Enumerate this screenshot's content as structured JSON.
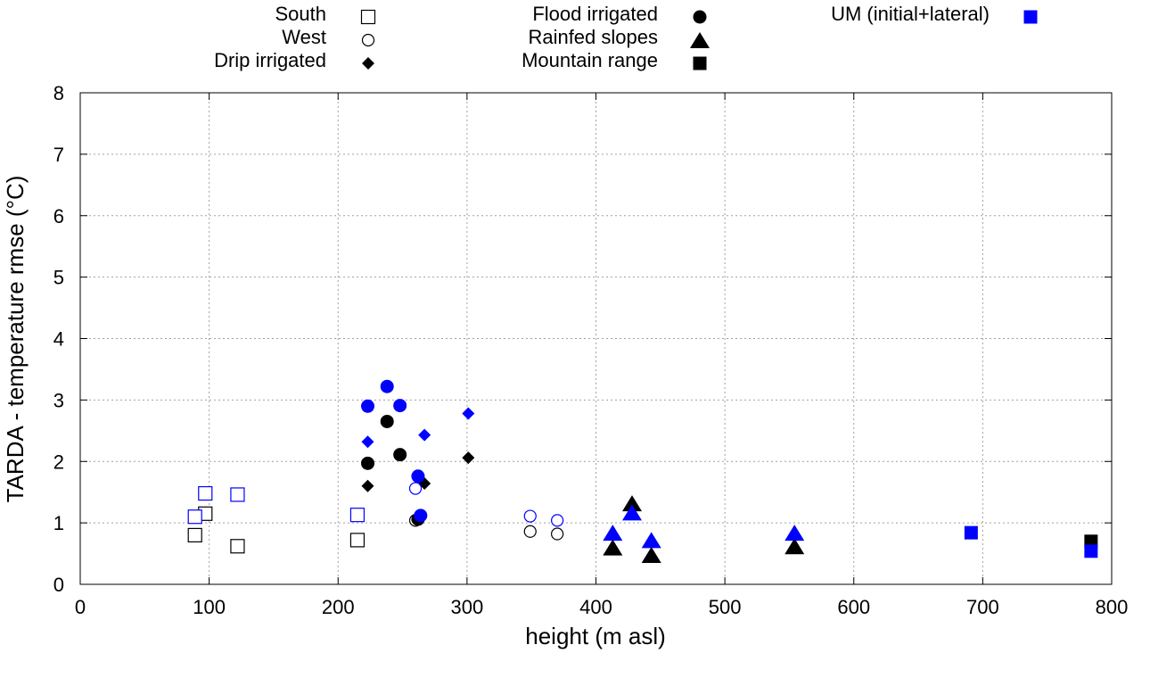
{
  "chart_data": {
    "type": "scatter",
    "title": "",
    "xlabel": "height (m asl)",
    "ylabel": "TARDA - temperature rmse (°C)",
    "xlim": [
      0,
      800
    ],
    "ylim": [
      0,
      8
    ],
    "xticks": [
      0,
      100,
      200,
      300,
      400,
      500,
      600,
      700,
      800
    ],
    "yticks": [
      0,
      1,
      2,
      3,
      4,
      5,
      6,
      7,
      8
    ],
    "grid": true,
    "legend_position": "top",
    "colors": {
      "black": "#000000",
      "blue": "#0000ff"
    },
    "legend": [
      {
        "label": "South",
        "marker": "square-open",
        "color": "#000000",
        "column": 0
      },
      {
        "label": "West",
        "marker": "circle-open",
        "color": "#000000",
        "column": 0
      },
      {
        "label": "Drip irrigated",
        "marker": "diamond",
        "color": "#000000",
        "column": 0
      },
      {
        "label": "Flood irrigated",
        "marker": "circle",
        "color": "#000000",
        "column": 1
      },
      {
        "label": "Rainfed slopes",
        "marker": "triangle",
        "color": "#000000",
        "column": 1
      },
      {
        "label": "Mountain range",
        "marker": "square",
        "color": "#000000",
        "column": 1
      },
      {
        "label": "UM (initial+lateral)",
        "marker": "square",
        "color": "#0000ff",
        "column": 2
      }
    ],
    "series": [
      {
        "name": "South",
        "marker": "square-open",
        "color": "#000000",
        "points": [
          [
            89,
            0.8
          ],
          [
            97,
            1.15
          ],
          [
            122,
            0.62
          ],
          [
            215,
            0.72
          ]
        ]
      },
      {
        "name": "West",
        "marker": "circle-open",
        "color": "#000000",
        "points": [
          [
            260,
            1.04
          ],
          [
            349,
            0.86
          ],
          [
            370,
            0.82
          ]
        ]
      },
      {
        "name": "Drip irrigated",
        "marker": "diamond",
        "color": "#000000",
        "points": [
          [
            223,
            1.6
          ],
          [
            267,
            1.64
          ],
          [
            301,
            2.06
          ]
        ]
      },
      {
        "name": "Flood irrigated",
        "marker": "circle",
        "color": "#000000",
        "points": [
          [
            223,
            1.97
          ],
          [
            238,
            2.65
          ],
          [
            248,
            2.11
          ],
          [
            262,
            1.06
          ]
        ]
      },
      {
        "name": "Rainfed slopes",
        "marker": "triangle",
        "color": "#000000",
        "points": [
          [
            413,
            0.6
          ],
          [
            428,
            1.32
          ],
          [
            443,
            0.48
          ],
          [
            554,
            0.62
          ]
        ]
      },
      {
        "name": "Mountain range",
        "marker": "square",
        "color": "#000000",
        "points": [
          [
            784,
            0.7
          ]
        ]
      },
      {
        "name": "UM (initial+lateral) - South",
        "marker": "square-open",
        "color": "#0000ff",
        "points": [
          [
            89,
            1.1
          ],
          [
            97,
            1.48
          ],
          [
            122,
            1.46
          ],
          [
            215,
            1.13
          ]
        ]
      },
      {
        "name": "UM (initial+lateral) - West",
        "marker": "circle-open",
        "color": "#0000ff",
        "points": [
          [
            260,
            1.56
          ],
          [
            349,
            1.11
          ],
          [
            370,
            1.04
          ]
        ]
      },
      {
        "name": "UM (initial+lateral) - Drip irrigated",
        "marker": "diamond",
        "color": "#0000ff",
        "points": [
          [
            223,
            2.32
          ],
          [
            267,
            2.43
          ],
          [
            301,
            2.78
          ]
        ]
      },
      {
        "name": "UM (initial+lateral) - Flood irrigated",
        "marker": "circle",
        "color": "#0000ff",
        "points": [
          [
            223,
            2.9
          ],
          [
            238,
            3.22
          ],
          [
            248,
            2.91
          ],
          [
            262,
            1.76
          ],
          [
            264,
            1.12
          ]
        ]
      },
      {
        "name": "UM (initial+lateral) - Rainfed slopes",
        "marker": "triangle",
        "color": "#0000ff",
        "points": [
          [
            413,
            0.84
          ],
          [
            428,
            1.17
          ],
          [
            443,
            0.72
          ],
          [
            554,
            0.84
          ]
        ]
      },
      {
        "name": "UM (initial+lateral) - Mountain range",
        "marker": "square",
        "color": "#0000ff",
        "points": [
          [
            691,
            0.84
          ],
          [
            784,
            0.54
          ]
        ]
      }
    ]
  }
}
